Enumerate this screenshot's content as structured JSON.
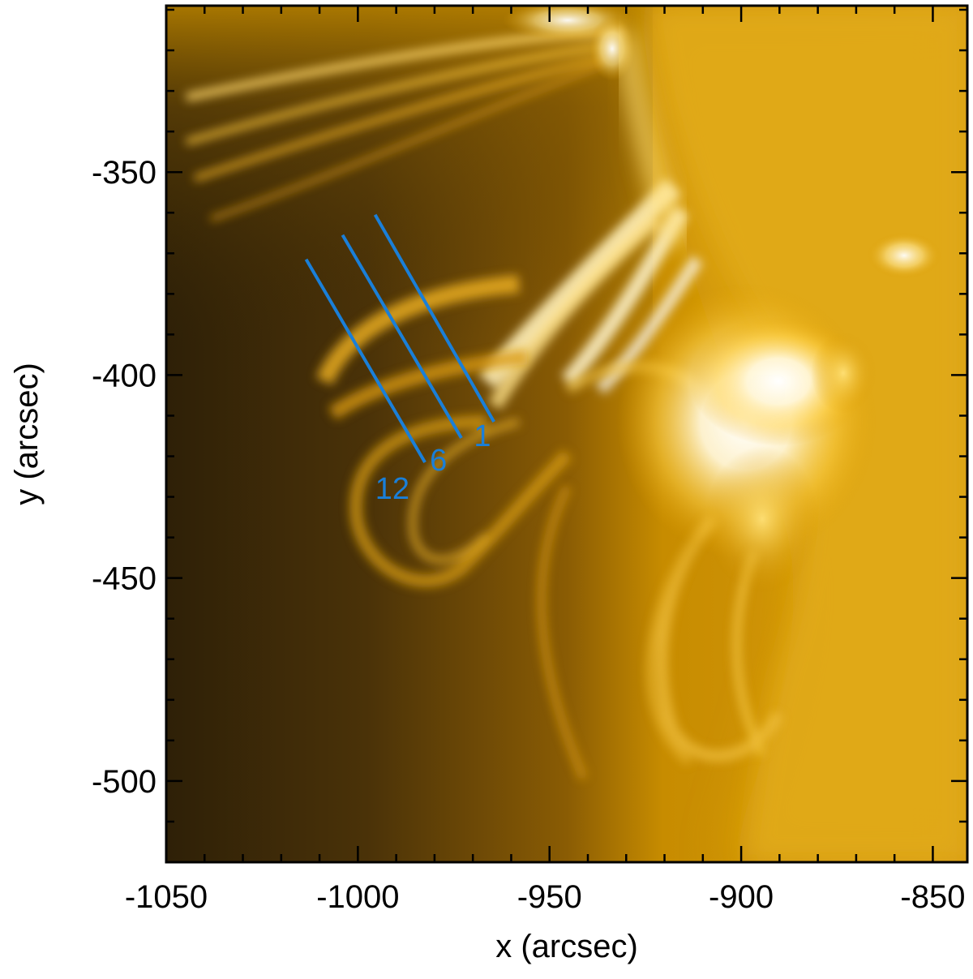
{
  "figure": {
    "xlabel": "x (arcsec)",
    "ylabel": "y (arcsec)",
    "xlim": [
      -1050,
      -841
    ],
    "ylim": [
      -520,
      -309
    ],
    "x_ticks": [
      -1050,
      -1000,
      -950,
      -900,
      -850
    ],
    "y_ticks": [
      -350,
      -400,
      -450,
      -500
    ],
    "x_tick_labels": [
      "-1050",
      "-1000",
      "-950",
      "-900",
      "-850"
    ],
    "y_tick_labels": [
      "-350",
      "-400",
      "-450",
      "-500"
    ],
    "colormap": "SDO/AIA 171-style gold-brown",
    "slit_color": "#1a7fd8",
    "slits": [
      {
        "label": "1",
        "x1": -995.5,
        "y1": -360.5,
        "x2": -964.5,
        "y2": -411.5
      },
      {
        "label": "6",
        "x1": -1004.0,
        "y1": -365.5,
        "x2": -973.0,
        "y2": -415.5
      },
      {
        "label": "12",
        "x1": -1013.5,
        "y1": -371.5,
        "x2": -982.5,
        "y2": -421.5
      }
    ],
    "slit_label_positions": [
      {
        "label": "1",
        "x": -967.5,
        "y": -417.5
      },
      {
        "label": "6",
        "x": -979.0,
        "y": -423.5
      },
      {
        "label": "12",
        "x": -991.0,
        "y": -430.5
      }
    ]
  }
}
